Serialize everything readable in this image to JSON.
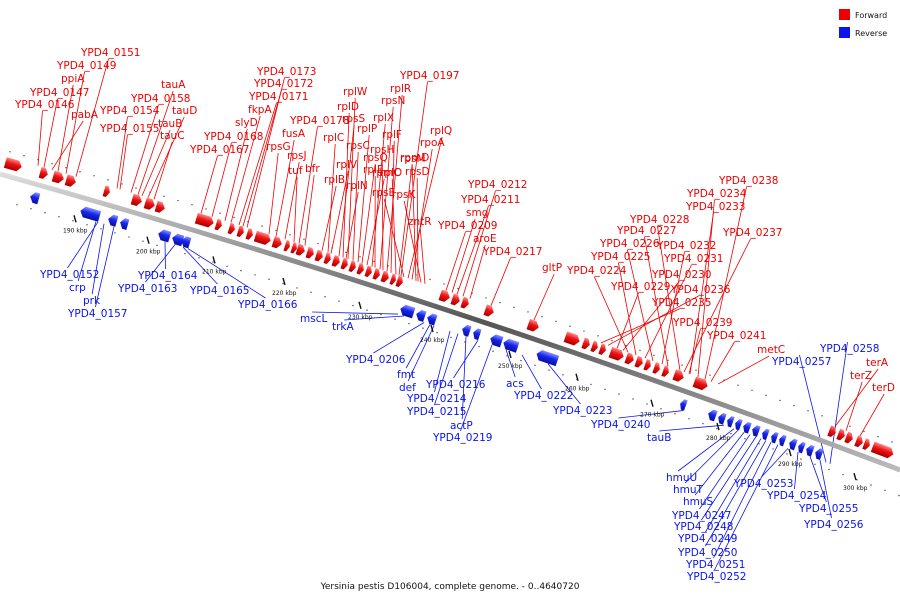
{
  "caption": "Yersinia pestis D106004, complete genome. - 0..4640720",
  "legend": [
    {
      "label": "Forward",
      "color": "#ee0000"
    },
    {
      "label": "Reverse",
      "color": "#0a14ee"
    }
  ],
  "colors": {
    "forward": "#ee0000",
    "reverse": "#0a14ee",
    "backbone": "#666666"
  },
  "ticks": [
    "190 kbp",
    "200 kbp",
    "210 kbp",
    "220 kbp",
    "230 kbp",
    "240 kbp",
    "250 kbp",
    "260 kbp",
    "270 kbp",
    "280 kbp",
    "290 kbp",
    "300 kbp"
  ],
  "forward_labels": [
    "YPD4_0151",
    "YPD4_0149",
    "ppiA",
    "YPD4_0147",
    "YPD4_0146",
    "pabA",
    "tauA",
    "YPD4_0158",
    "YPD4_0154",
    "tauD",
    "tauB",
    "YPD4_0155",
    "tauC",
    "YPD4_0173",
    "YPD4_0172",
    "YPD4_0171",
    "fkpA",
    "slyD",
    "YPD4_0168",
    "YPD4_0167",
    "rpsG",
    "fusA",
    "rpsJ",
    "tuf",
    "YPD4_0178",
    "bfr",
    "rplW",
    "rplD",
    "rplC",
    "rplB",
    "rpsS",
    "rplV",
    "rpsC",
    "rplP",
    "rpmC",
    "rpsQ",
    "rplN",
    "rplX",
    "rplE",
    "rpsN",
    "rplR",
    "rpsH",
    "rplF",
    "rplO",
    "rpsE",
    "rpmD",
    "YPD4_0197",
    "rplQ",
    "rpoA",
    "rpsM",
    "rpsK",
    "rpsD",
    "zntR",
    "YPD4_0212",
    "YPD4_0211",
    "smg",
    "YPD4_0209",
    "aroE",
    "YPD4_0217",
    "gltP",
    "YPD4_0238",
    "YPD4_0234",
    "YPD4_0233",
    "YPD4_0228",
    "YPD4_0237",
    "YPD4_0227",
    "YPD4_0232",
    "YPD4_0226",
    "YPD4_0231",
    "YPD4_0225",
    "YPD4_0224",
    "YPD4_0230",
    "YPD4_0229",
    "YPD4_0236",
    "YPD4_0235",
    "YPD4_0239",
    "YPD4_0241",
    "metC",
    "terA",
    "terZ",
    "terD"
  ],
  "reverse_labels": [
    "YPD4_0152",
    "crp",
    "prk",
    "YPD4_0157",
    "YPD4_0164",
    "YPD4_0163",
    "YPD4_0165",
    "YPD4_0166",
    "mscL",
    "trkA",
    "YPD4_0206",
    "fmt",
    "def",
    "YPD4_0216",
    "YPD4_0214",
    "YPD4_0215",
    "actP",
    "YPD4_0219",
    "acs",
    "YPD4_0222",
    "YPD4_0223",
    "YPD4_0240",
    "tauB",
    "YPD4_0258",
    "YPD4_0257",
    "hmuU",
    "hmuT",
    "hmuS",
    "YPD4_0247",
    "YPD4_0248",
    "YPD4_0249",
    "YPD4_0250",
    "YPD4_0251",
    "YPD4_0252",
    "YPD4_0253",
    "YPD4_0254",
    "YPD4_0255",
    "YPD4_0256"
  ]
}
